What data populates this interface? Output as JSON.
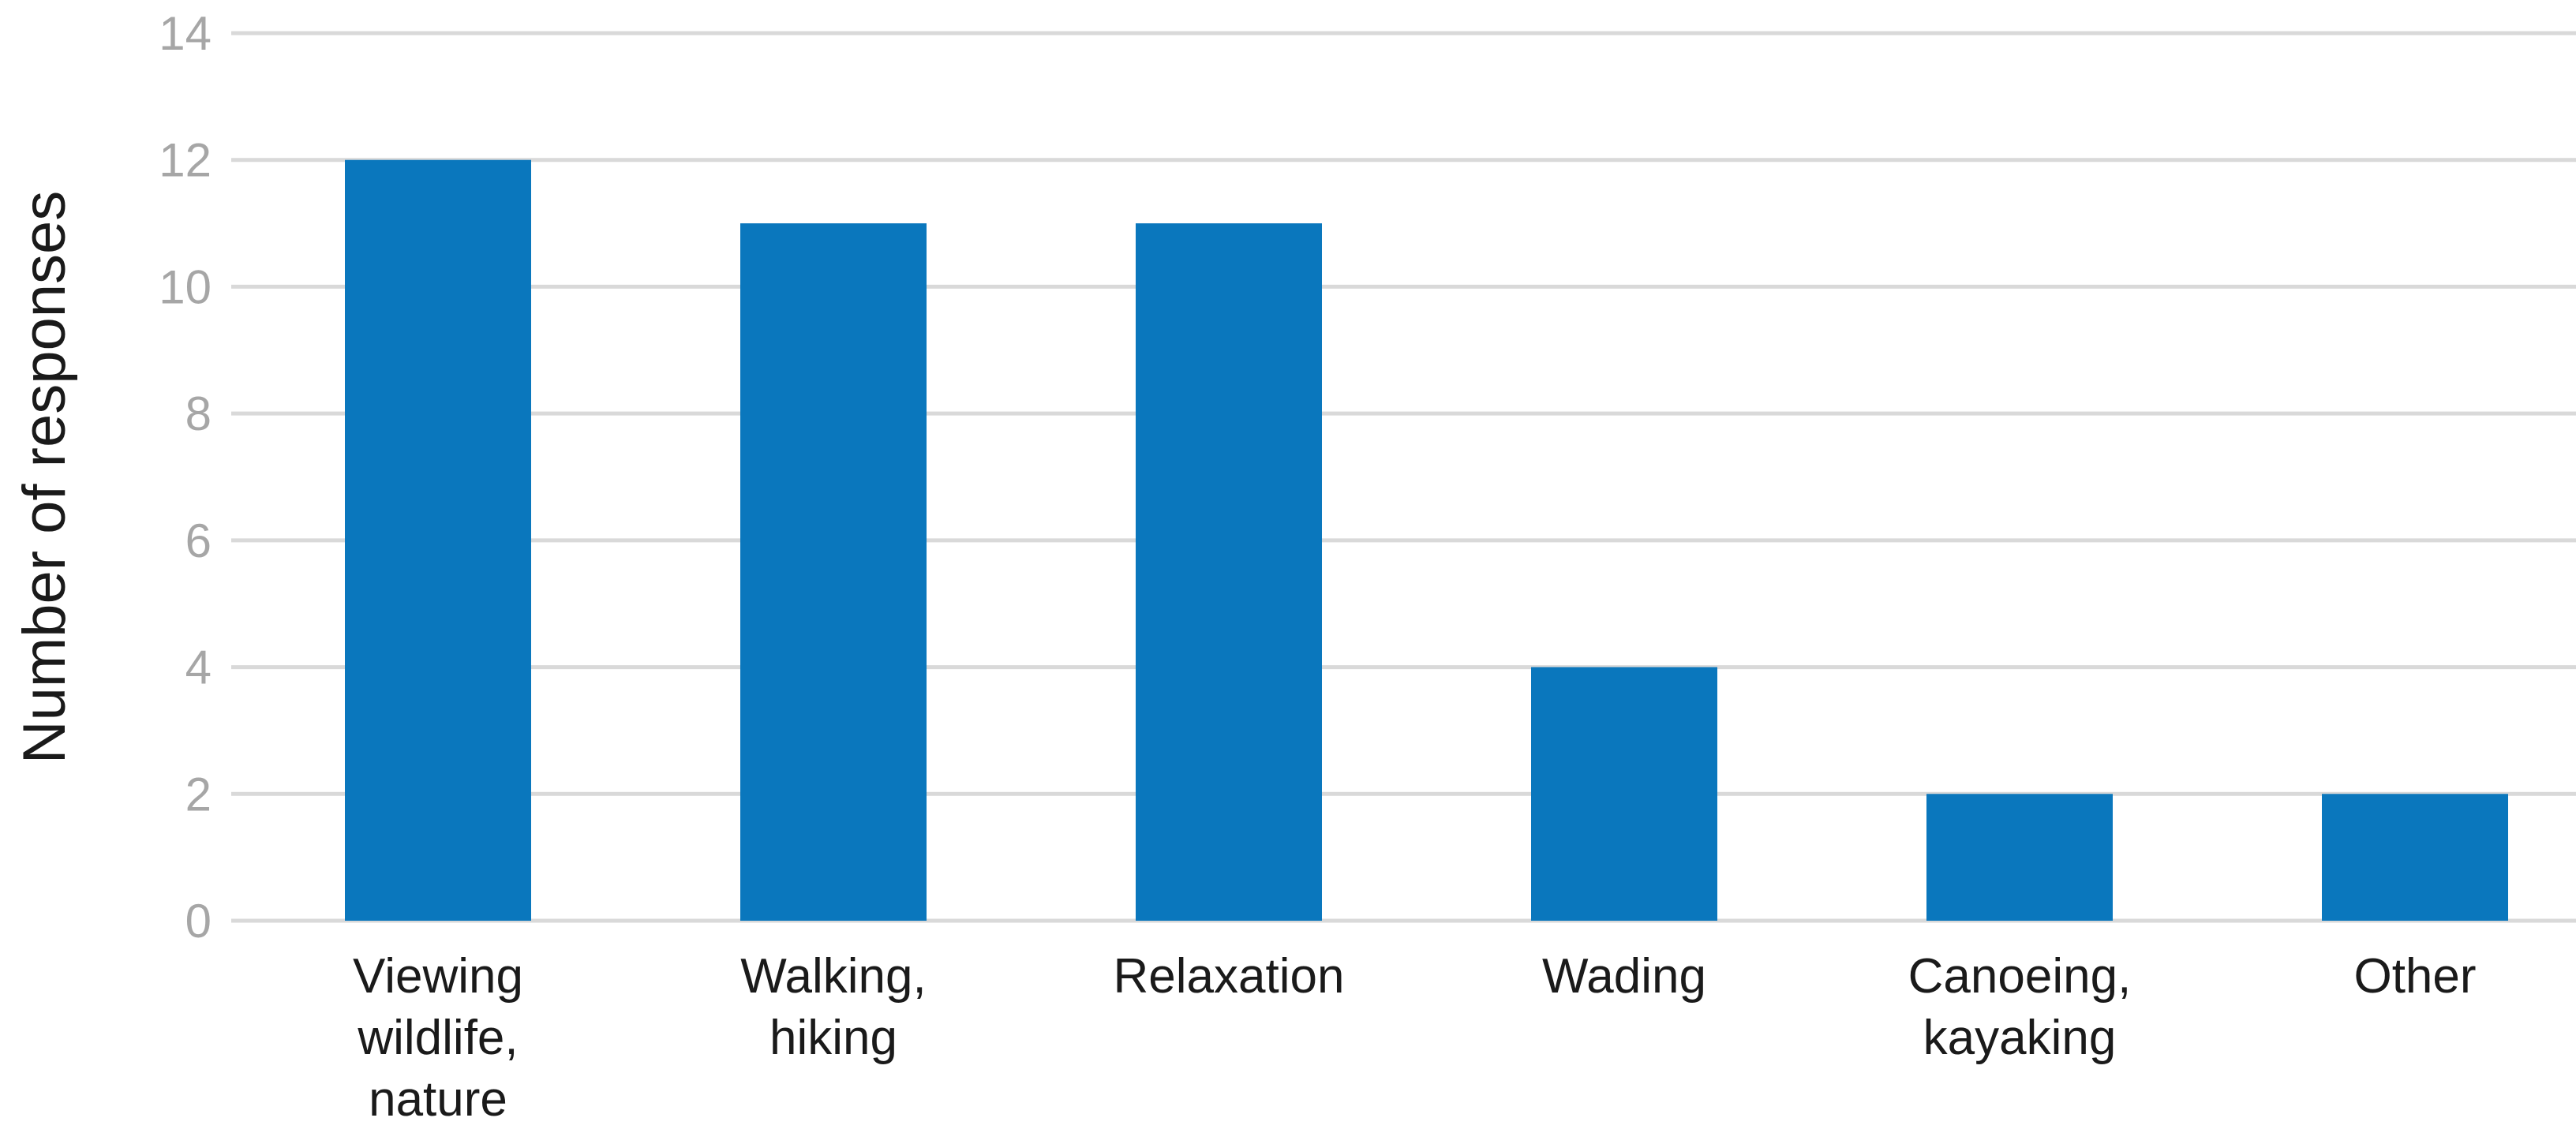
{
  "chart_data": {
    "type": "bar",
    "title": "",
    "xlabel": "",
    "ylabel": "Number of responses",
    "categories": [
      [
        "Viewing",
        "wildlife,",
        "nature"
      ],
      [
        "Walking,",
        "hiking"
      ],
      [
        "Relaxation"
      ],
      [
        "Wading"
      ],
      [
        "Canoeing,",
        "kayaking"
      ],
      [
        "Other"
      ]
    ],
    "values": [
      12,
      11,
      11,
      4,
      2,
      2
    ],
    "ylim": [
      0,
      14
    ],
    "yticks": [
      0,
      2,
      4,
      6,
      8,
      10,
      12,
      14
    ],
    "grid": true,
    "legend": "none",
    "colors": {
      "bar": "#0a77bd",
      "grid": "#d9d9d9",
      "tick_text": "#a6a6a6",
      "label_text": "#1a1a1a"
    }
  }
}
